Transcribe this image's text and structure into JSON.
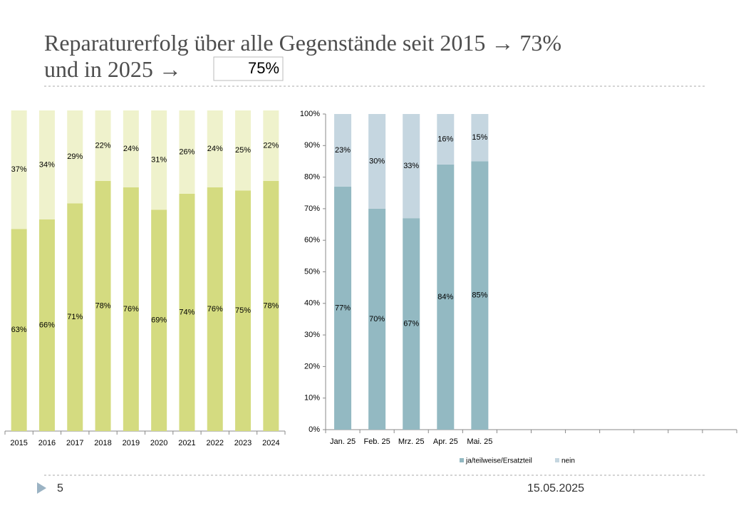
{
  "slide": {
    "title_line1": "Reparaturerfolg über alle Gegenstände seit 2015 → 73%",
    "title_line2": "und in 2025 →",
    "highlight": "75%",
    "page_number": "5",
    "date": "15.05.2025"
  },
  "chart_data": [
    {
      "type": "bar",
      "stacked": true,
      "categories": [
        "2015",
        "2016",
        "2017",
        "2018",
        "2019",
        "2020",
        "2021",
        "2022",
        "2023",
        "2024"
      ],
      "ylim": [
        0,
        100
      ],
      "series": [
        {
          "color": "#d4db80",
          "values": [
            63,
            66,
            71,
            78,
            76,
            69,
            74,
            76,
            75,
            78
          ],
          "value_labels": [
            "63%",
            "66%",
            "71%",
            "78%",
            "76%",
            "69%",
            "74%",
            "76%",
            "75%",
            "78%"
          ]
        },
        {
          "color": "#eff2cc",
          "values": [
            37,
            34,
            29,
            22,
            24,
            31,
            26,
            24,
            25,
            22
          ],
          "value_labels": [
            "37%",
            "34%",
            "29%",
            "22%",
            "24%",
            "31%",
            "26%",
            "24%",
            "25%",
            "22%"
          ]
        }
      ]
    },
    {
      "type": "bar",
      "stacked": true,
      "categories": [
        "Jan. 25",
        "Feb. 25",
        "Mrz. 25",
        "Apr. 25",
        "Mai. 25",
        null,
        null,
        null,
        null,
        null,
        null,
        null
      ],
      "ylim": [
        0,
        100
      ],
      "yticks": [
        {
          "value": 0,
          "label": "0%"
        },
        {
          "value": 10,
          "label": "10%"
        },
        {
          "value": 20,
          "label": "20%"
        },
        {
          "value": 30,
          "label": "30%"
        },
        {
          "value": 40,
          "label": "40%"
        },
        {
          "value": 50,
          "label": "50%"
        },
        {
          "value": 60,
          "label": "60%"
        },
        {
          "value": 70,
          "label": "70%"
        },
        {
          "value": 80,
          "label": "80%"
        },
        {
          "value": 90,
          "label": "90%"
        },
        {
          "value": 100,
          "label": "100%"
        }
      ],
      "legend": "bottom",
      "series": [
        {
          "name": "ja/teilweise/Ersatzteil",
          "color": "#93b9c2",
          "values": [
            77,
            70,
            67,
            84,
            85,
            null,
            null,
            null,
            null,
            null,
            null,
            null
          ],
          "value_labels": [
            "77%",
            "70%",
            "67%",
            "84%",
            "85%",
            null,
            null,
            null,
            null,
            null,
            null,
            null
          ]
        },
        {
          "name": "nein",
          "color": "#c5d6e0",
          "values": [
            23,
            30,
            33,
            16,
            15,
            null,
            null,
            null,
            null,
            null,
            null,
            null
          ],
          "value_labels": [
            "23%",
            "30%",
            "33%",
            "16%",
            "15%",
            null,
            null,
            null,
            null,
            null,
            null,
            null
          ]
        }
      ]
    }
  ]
}
